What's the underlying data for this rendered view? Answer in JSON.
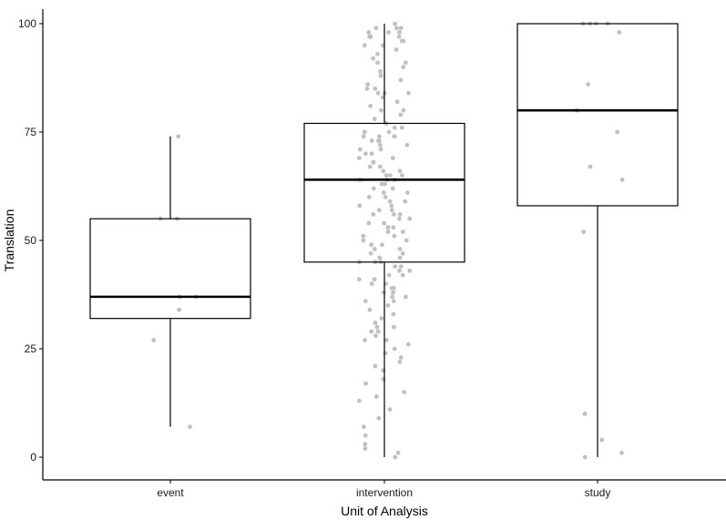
{
  "chart_data": {
    "type": "box",
    "title": "",
    "xlabel": "Unit of Analysis",
    "ylabel": "Translation",
    "ylim": [
      0,
      100
    ],
    "y_ticks": [
      0,
      25,
      50,
      75,
      100
    ],
    "categories": [
      "event",
      "intervention",
      "study"
    ],
    "grid": false,
    "legend": "none",
    "colors": {
      "points": "#c0c0c0",
      "box_stroke": "#000000",
      "axis": "#000000"
    },
    "boxes": [
      {
        "category": "event",
        "whisker_low": 7,
        "q1": 32,
        "median": 37,
        "q3": 55,
        "whisker_high": 74
      },
      {
        "category": "intervention",
        "whisker_low": 0,
        "q1": 45,
        "median": 64,
        "q3": 77,
        "whisker_high": 100
      },
      {
        "category": "study",
        "whisker_low": 0,
        "q1": 58,
        "median": 80,
        "q3": 100,
        "whisker_high": 100
      }
    ],
    "points": [
      {
        "category": "event",
        "values": [
          74,
          55,
          55,
          37,
          37,
          34,
          27,
          7
        ]
      },
      {
        "category": "intervention",
        "values": [
          100,
          99,
          99,
          99,
          98,
          98,
          98,
          97,
          97,
          97,
          96,
          96,
          95,
          95,
          94,
          93,
          92,
          91,
          91,
          90,
          89,
          88,
          87,
          86,
          85,
          85,
          84,
          84,
          84,
          83,
          82,
          81,
          80,
          80,
          79,
          78,
          77,
          76,
          76,
          75,
          75,
          74,
          74,
          74,
          74,
          73,
          73,
          73,
          72,
          72,
          71,
          71,
          70,
          70,
          69,
          69,
          68,
          68,
          67,
          67,
          66,
          66,
          65,
          65,
          65,
          64,
          64,
          64,
          63,
          63,
          62,
          62,
          61,
          61,
          60,
          60,
          59,
          59,
          58,
          58,
          57,
          57,
          56,
          56,
          56,
          55,
          55,
          54,
          54,
          53,
          53,
          52,
          52,
          51,
          51,
          50,
          50,
          49,
          49,
          48,
          48,
          47,
          47,
          46,
          46,
          45,
          45,
          45,
          44,
          44,
          43,
          43,
          42,
          42,
          41,
          41,
          40,
          40,
          39,
          39,
          38,
          38,
          37,
          37,
          36,
          36,
          35,
          34,
          33,
          32,
          31,
          30,
          30,
          29,
          29,
          28,
          27,
          27,
          26,
          25,
          24,
          23,
          22,
          21,
          20,
          18,
          17,
          15,
          14,
          13,
          11,
          9,
          7,
          5,
          3,
          2,
          1,
          0
        ]
      },
      {
        "category": "study",
        "values": [
          100,
          100,
          100,
          100,
          98,
          86,
          80,
          75,
          67,
          64,
          52,
          10,
          4,
          1,
          0
        ]
      }
    ]
  }
}
